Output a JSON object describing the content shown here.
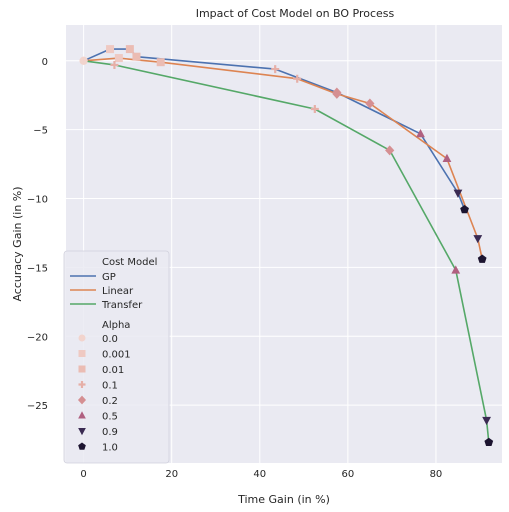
{
  "chart_data": {
    "type": "line",
    "title": "Impact of Cost Model on BO Process",
    "xlabel": "Time Gain (in %)",
    "ylabel": "Accuracy Gain (in %)",
    "xlim": [
      -4,
      95
    ],
    "ylim": [
      -29.2,
      2.6
    ],
    "xticks": [
      0,
      20,
      40,
      60,
      80
    ],
    "yticks": [
      0,
      -5,
      -10,
      -15,
      -20,
      -25
    ],
    "grid": true,
    "legend_position": "lower-left",
    "legend": {
      "hue_title": "Cost Model",
      "style_title": "Alpha"
    },
    "colors": {
      "GP": "#4c72b0",
      "Linear": "#dd8452",
      "Transfer": "#55a868",
      "background": "#eaeaf2"
    },
    "alpha_levels": [
      {
        "name": "0.0",
        "marker": "circle",
        "color": "#f2d4cd"
      },
      {
        "name": "0.001",
        "marker": "square",
        "color": "#efc9c2"
      },
      {
        "name": "0.01",
        "marker": "square",
        "color": "#ebbcb3"
      },
      {
        "name": "0.1",
        "marker": "plus",
        "color": "#e6afa7"
      },
      {
        "name": "0.2",
        "marker": "diamond",
        "color": "#d58f92"
      },
      {
        "name": "0.5",
        "marker": "triangle",
        "color": "#b06080"
      },
      {
        "name": "0.9",
        "marker": "triangle-down",
        "color": "#3a2a52"
      },
      {
        "name": "1.0",
        "marker": "pentagon",
        "color": "#1c1430"
      }
    ],
    "series": [
      {
        "name": "GP",
        "points": [
          {
            "x": 0,
            "y": 0,
            "alpha": "0.0"
          },
          {
            "x": 6,
            "y": 0.85,
            "alpha": "0.001"
          },
          {
            "x": 10.5,
            "y": 0.85,
            "alpha": "0.01"
          },
          {
            "x": 12,
            "y": 0.3,
            "alpha": "0.01"
          },
          {
            "x": 43.5,
            "y": -0.6,
            "alpha": "0.1"
          },
          {
            "x": 57.5,
            "y": -2.3,
            "alpha": "0.2"
          },
          {
            "x": 76.5,
            "y": -5.3,
            "alpha": "0.5"
          },
          {
            "x": 85,
            "y": -9.6,
            "alpha": "0.9"
          },
          {
            "x": 86.5,
            "y": -10.8,
            "alpha": "1.0"
          }
        ]
      },
      {
        "name": "Linear",
        "points": [
          {
            "x": 0,
            "y": 0,
            "alpha": "0.0"
          },
          {
            "x": 8,
            "y": 0.2,
            "alpha": "0.001"
          },
          {
            "x": 17.5,
            "y": -0.1,
            "alpha": "0.01"
          },
          {
            "x": 48.5,
            "y": -1.3,
            "alpha": "0.1"
          },
          {
            "x": 57.5,
            "y": -2.4,
            "alpha": "0.2"
          },
          {
            "x": 65,
            "y": -3.1,
            "alpha": "0.2"
          },
          {
            "x": 82.5,
            "y": -7.1,
            "alpha": "0.5"
          },
          {
            "x": 89.5,
            "y": -12.9,
            "alpha": "0.9"
          },
          {
            "x": 90.5,
            "y": -14.4,
            "alpha": "1.0"
          }
        ]
      },
      {
        "name": "Transfer",
        "points": [
          {
            "x": 0,
            "y": 0,
            "alpha": "0.0"
          },
          {
            "x": 7,
            "y": -0.3,
            "alpha": "0.1"
          },
          {
            "x": 52.5,
            "y": -3.5,
            "alpha": "0.1"
          },
          {
            "x": 69.5,
            "y": -6.5,
            "alpha": "0.2"
          },
          {
            "x": 84.5,
            "y": -15.2,
            "alpha": "0.5"
          },
          {
            "x": 91.5,
            "y": -26.1,
            "alpha": "0.9"
          },
          {
            "x": 92,
            "y": -27.7,
            "alpha": "1.0"
          }
        ]
      }
    ]
  }
}
